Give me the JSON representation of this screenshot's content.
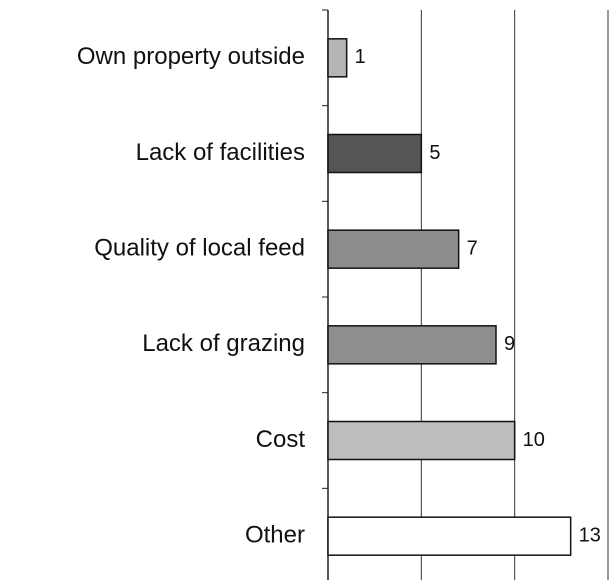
{
  "chart_data": {
    "type": "hbar",
    "categories": [
      "Own property outside",
      "Lack of facilities",
      "Quality of local feed",
      "Lack of grazing",
      "Cost",
      "Other"
    ],
    "values": [
      1,
      5,
      7,
      9,
      10,
      13
    ],
    "colors": [
      "#b5b5b5",
      "#555555",
      "#8c8c8c",
      "#8f8f8f",
      "#bdbdbd",
      "#ffffff"
    ],
    "xlim": [
      0,
      15
    ],
    "xticks": [
      0,
      5,
      10,
      15
    ],
    "grid": true
  }
}
